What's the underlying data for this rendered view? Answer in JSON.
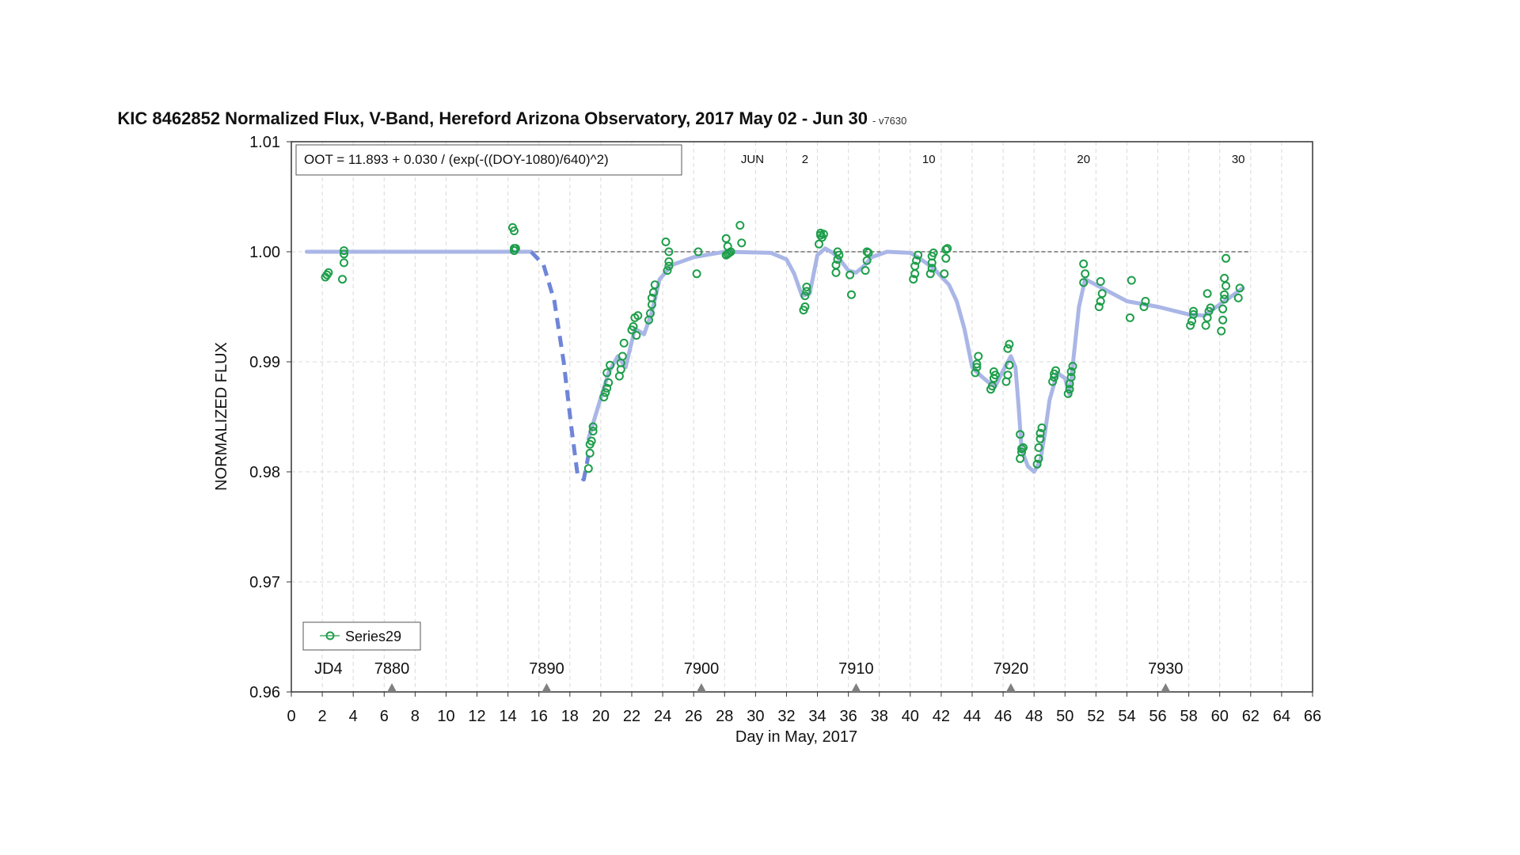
{
  "chart_data": {
    "type": "scatter",
    "title": "KIC 8462852 Normalized Flux, V-Band, Hereford Arizona Observatory, 2017 May 02 - Jun 30",
    "subtitle": "- v7630",
    "xlabel": "Day in May, 2017",
    "ylabel": "NORMALIZED FLUX",
    "xlim": [
      0,
      66
    ],
    "ylim": [
      0.96,
      1.01
    ],
    "x_ticks": [
      0,
      2,
      4,
      6,
      8,
      10,
      12,
      14,
      16,
      18,
      20,
      22,
      24,
      26,
      28,
      30,
      32,
      34,
      36,
      38,
      40,
      42,
      44,
      46,
      48,
      50,
      52,
      54,
      56,
      58,
      60,
      62,
      64,
      66
    ],
    "y_ticks": [
      "0.96",
      "0.97",
      "0.98",
      "0.99",
      "1.00",
      "1.01"
    ],
    "grid": true,
    "reference_line": 1.0,
    "annotation_equation": "OOT = 11.893 + 0.030 / (exp(-((DOY-1080)/640)^2)",
    "month_labels": [
      {
        "x": 29.8,
        "label": "JUN"
      },
      {
        "x": 33.2,
        "label": "2"
      },
      {
        "x": 41.2,
        "label": "10"
      },
      {
        "x": 51.2,
        "label": "20"
      },
      {
        "x": 61.2,
        "label": "30"
      }
    ],
    "jd_prefix": {
      "x": 2.4,
      "label": "JD4"
    },
    "jd_markers": [
      {
        "x": 6.5,
        "label": "7880"
      },
      {
        "x": 16.5,
        "label": "7890"
      },
      {
        "x": 26.5,
        "label": "7900"
      },
      {
        "x": 36.5,
        "label": "7910"
      },
      {
        "x": 46.5,
        "label": "7920"
      },
      {
        "x": 56.5,
        "label": "7930"
      }
    ],
    "legend": {
      "placement": "bottom-left",
      "entries": [
        "Series29"
      ]
    },
    "colors": {
      "points": "#1e9e4a",
      "model": "#a9b6e6",
      "model_dashed": "#6f85d8",
      "reference": "#555555",
      "jd_marker": "#808080"
    },
    "model_solid": [
      [
        [
          1.0,
          1.0
        ],
        [
          15.5,
          1.0
        ]
      ],
      [
        [
          19.2,
          0.983
        ],
        [
          19.8,
          0.9858
        ],
        [
          20.5,
          0.989
        ],
        [
          21.1,
          0.9905
        ],
        [
          21.6,
          0.9895
        ],
        [
          22.2,
          0.993
        ],
        [
          22.8,
          0.9925
        ],
        [
          23.3,
          0.9945
        ],
        [
          23.8,
          0.9975
        ],
        [
          24.6,
          0.9988
        ],
        [
          26.0,
          0.9995
        ],
        [
          28.0,
          1.0
        ],
        [
          31.0,
          0.9999
        ],
        [
          32.0,
          0.9993
        ],
        [
          32.5,
          0.998
        ],
        [
          33.0,
          0.996
        ],
        [
          33.5,
          0.9962
        ],
        [
          34.0,
          0.9997
        ],
        [
          34.5,
          1.0003
        ],
        [
          35.0,
          0.9999
        ],
        [
          35.5,
          0.9992
        ],
        [
          36.0,
          0.9983
        ],
        [
          36.5,
          0.9981
        ],
        [
          37.0,
          0.9987
        ],
        [
          37.5,
          0.9995
        ],
        [
          38.5,
          1.0
        ],
        [
          40.0,
          0.9999
        ],
        [
          40.5,
          0.9995
        ],
        [
          41.5,
          0.9985
        ],
        [
          42.5,
          0.997
        ],
        [
          43.0,
          0.9955
        ],
        [
          43.5,
          0.993
        ],
        [
          44.0,
          0.9895
        ],
        [
          44.5,
          0.9888
        ],
        [
          45.0,
          0.9882
        ],
        [
          45.5,
          0.9878
        ],
        [
          46.0,
          0.9892
        ],
        [
          46.5,
          0.9905
        ],
        [
          46.8,
          0.9895
        ],
        [
          47.0,
          0.986
        ],
        [
          47.2,
          0.982
        ],
        [
          47.6,
          0.9805
        ],
        [
          48.0,
          0.98
        ],
        [
          48.4,
          0.981
        ],
        [
          48.7,
          0.9835
        ],
        [
          49.0,
          0.9865
        ],
        [
          49.5,
          0.989
        ],
        [
          50.0,
          0.9885
        ],
        [
          50.3,
          0.987
        ],
        [
          50.6,
          0.991
        ],
        [
          50.9,
          0.995
        ],
        [
          51.3,
          0.9975
        ],
        [
          52.0,
          0.997
        ],
        [
          54.0,
          0.9955
        ],
        [
          56.0,
          0.995
        ],
        [
          58.0,
          0.9943
        ],
        [
          59.0,
          0.9942
        ],
        [
          60.0,
          0.9952
        ],
        [
          60.5,
          0.9957
        ],
        [
          61.5,
          0.9967
        ]
      ]
    ],
    "model_dashed": [
      [
        15.5,
        1.0
      ],
      [
        16.3,
        0.9988
      ],
      [
        17.0,
        0.9955
      ],
      [
        17.6,
        0.99
      ],
      [
        18.1,
        0.984
      ],
      [
        18.5,
        0.9797
      ],
      [
        18.9,
        0.9793
      ],
      [
        19.2,
        0.9815
      ]
    ],
    "series": [
      {
        "name": "Series29",
        "points": [
          [
            2.2,
            0.9977
          ],
          [
            2.3,
            0.9979
          ],
          [
            2.4,
            0.9981
          ],
          [
            3.3,
            0.9975
          ],
          [
            3.4,
            0.999
          ],
          [
            3.4,
            0.9998
          ],
          [
            3.4,
            1.0001
          ],
          [
            14.3,
            1.0022
          ],
          [
            14.4,
            1.0019
          ],
          [
            14.4,
            1.0003
          ],
          [
            14.4,
            1.0001
          ],
          [
            14.5,
            1.0003
          ],
          [
            19.2,
            0.9803
          ],
          [
            19.3,
            0.9817
          ],
          [
            19.3,
            0.9825
          ],
          [
            19.4,
            0.9828
          ],
          [
            19.5,
            0.9837
          ],
          [
            19.5,
            0.9841
          ],
          [
            20.2,
            0.9868
          ],
          [
            20.3,
            0.9872
          ],
          [
            20.4,
            0.9876
          ],
          [
            20.5,
            0.9881
          ],
          [
            20.4,
            0.989
          ],
          [
            20.6,
            0.9897
          ],
          [
            21.2,
            0.9887
          ],
          [
            21.3,
            0.9893
          ],
          [
            21.3,
            0.9899
          ],
          [
            21.4,
            0.9905
          ],
          [
            21.5,
            0.9917
          ],
          [
            22.0,
            0.9929
          ],
          [
            22.1,
            0.9932
          ],
          [
            22.3,
            0.9924
          ],
          [
            22.2,
            0.994
          ],
          [
            22.4,
            0.9942
          ],
          [
            23.1,
            0.9938
          ],
          [
            23.2,
            0.9944
          ],
          [
            23.3,
            0.9952
          ],
          [
            23.3,
            0.9958
          ],
          [
            23.4,
            0.9963
          ],
          [
            23.5,
            0.997
          ],
          [
            24.3,
            0.9983
          ],
          [
            24.4,
            0.9987
          ],
          [
            24.4,
            0.9991
          ],
          [
            24.2,
            1.0009
          ],
          [
            24.4,
            1.0
          ],
          [
            26.2,
            0.998
          ],
          [
            26.3,
            1.0
          ],
          [
            28.1,
            1.0012
          ],
          [
            28.2,
            1.0005
          ],
          [
            28.1,
            0.9997
          ],
          [
            28.2,
            0.9998
          ],
          [
            28.3,
            0.9999
          ],
          [
            28.4,
            1.0
          ],
          [
            29.0,
            1.0024
          ],
          [
            29.1,
            1.0008
          ],
          [
            33.1,
            0.9947
          ],
          [
            33.2,
            0.995
          ],
          [
            33.2,
            0.996
          ],
          [
            33.3,
            0.9964
          ],
          [
            33.3,
            0.9968
          ],
          [
            34.1,
            1.0007
          ],
          [
            34.2,
            1.0015
          ],
          [
            34.2,
            1.0017
          ],
          [
            34.4,
            1.0016
          ],
          [
            34.3,
            1.0013
          ],
          [
            35.2,
            0.9981
          ],
          [
            35.2,
            0.9988
          ],
          [
            35.3,
            0.9993
          ],
          [
            35.4,
            0.9997
          ],
          [
            35.3,
            1.0
          ],
          [
            36.1,
            0.9979
          ],
          [
            36.2,
            0.9961
          ],
          [
            37.1,
            0.9983
          ],
          [
            37.2,
            0.9992
          ],
          [
            37.3,
            0.9999
          ],
          [
            37.2,
            1.0
          ],
          [
            40.2,
            0.9975
          ],
          [
            40.3,
            0.998
          ],
          [
            40.3,
            0.9987
          ],
          [
            40.4,
            0.9992
          ],
          [
            40.5,
            0.9997
          ],
          [
            41.3,
            0.998
          ],
          [
            41.4,
            0.9985
          ],
          [
            41.4,
            0.999
          ],
          [
            41.4,
            0.9996
          ],
          [
            41.5,
            0.9999
          ],
          [
            42.2,
            0.998
          ],
          [
            42.3,
            0.9994
          ],
          [
            42.3,
            1.0002
          ],
          [
            42.4,
            1.0003
          ],
          [
            44.2,
            0.989
          ],
          [
            44.3,
            0.9895
          ],
          [
            44.3,
            0.9898
          ],
          [
            44.4,
            0.9905
          ],
          [
            45.2,
            0.9875
          ],
          [
            45.3,
            0.9878
          ],
          [
            45.4,
            0.9885
          ],
          [
            45.5,
            0.9888
          ],
          [
            45.4,
            0.9891
          ],
          [
            46.2,
            0.9882
          ],
          [
            46.3,
            0.9888
          ],
          [
            46.4,
            0.9897
          ],
          [
            46.3,
            0.9912
          ],
          [
            46.4,
            0.9916
          ],
          [
            47.1,
            0.9812
          ],
          [
            47.2,
            0.9818
          ],
          [
            47.2,
            0.9821
          ],
          [
            47.3,
            0.9822
          ],
          [
            47.1,
            0.9834
          ],
          [
            48.2,
            0.9807
          ],
          [
            48.3,
            0.9812
          ],
          [
            48.3,
            0.9822
          ],
          [
            48.4,
            0.983
          ],
          [
            48.4,
            0.9835
          ],
          [
            48.5,
            0.984
          ],
          [
            49.2,
            0.9882
          ],
          [
            49.3,
            0.9886
          ],
          [
            49.3,
            0.9889
          ],
          [
            49.4,
            0.9892
          ],
          [
            50.2,
            0.9871
          ],
          [
            50.3,
            0.9875
          ],
          [
            50.3,
            0.988
          ],
          [
            50.4,
            0.9886
          ],
          [
            50.4,
            0.9891
          ],
          [
            50.5,
            0.9896
          ],
          [
            51.2,
            0.9972
          ],
          [
            51.3,
            0.998
          ],
          [
            51.2,
            0.9989
          ],
          [
            52.2,
            0.995
          ],
          [
            52.3,
            0.9955
          ],
          [
            52.4,
            0.9962
          ],
          [
            52.3,
            0.9973
          ],
          [
            54.2,
            0.994
          ],
          [
            54.3,
            0.9974
          ],
          [
            55.1,
            0.995
          ],
          [
            55.2,
            0.9955
          ],
          [
            58.1,
            0.9933
          ],
          [
            58.2,
            0.9937
          ],
          [
            58.3,
            0.9943
          ],
          [
            58.3,
            0.9946
          ],
          [
            59.1,
            0.9933
          ],
          [
            59.2,
            0.994
          ],
          [
            59.3,
            0.9946
          ],
          [
            59.4,
            0.9949
          ],
          [
            59.2,
            0.9962
          ],
          [
            60.1,
            0.9928
          ],
          [
            60.2,
            0.9938
          ],
          [
            60.2,
            0.9948
          ],
          [
            60.3,
            0.9957
          ],
          [
            60.3,
            0.9961
          ],
          [
            60.4,
            0.9969
          ],
          [
            60.3,
            0.9976
          ],
          [
            60.4,
            0.9994
          ],
          [
            61.2,
            0.9958
          ],
          [
            61.3,
            0.9967
          ]
        ]
      }
    ]
  }
}
